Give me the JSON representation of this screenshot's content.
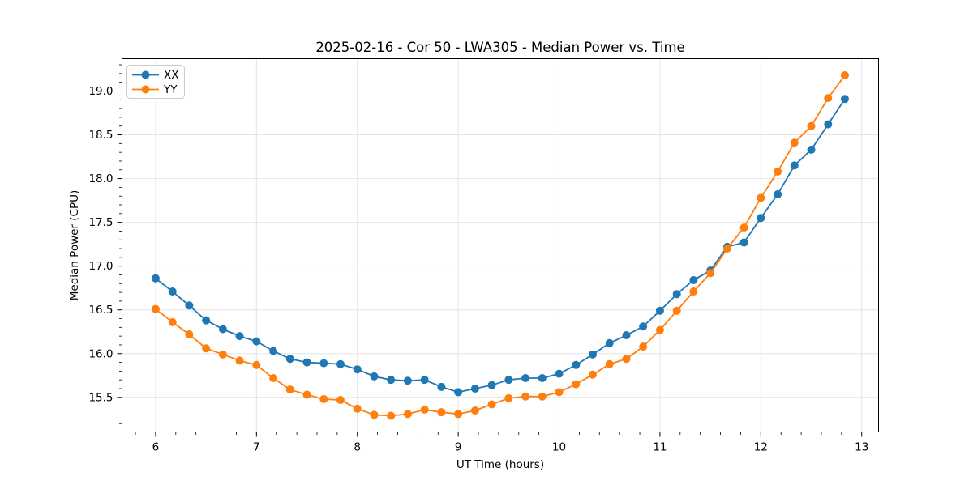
{
  "figure": {
    "background": "#ffffff",
    "plot_background": "#ffffff",
    "spine_color": "#000000",
    "grid_color": "#e4e4e4"
  },
  "chart_data": {
    "type": "line",
    "title": "2025-02-16 - Cor 50 - LWA305 - Median Power vs. Time",
    "xlabel": "UT Time (hours)",
    "ylabel": "Median Power (CPU)",
    "xlim": [
      5.667,
      13.167
    ],
    "ylim": [
      15.105,
      19.37
    ],
    "xticks": [
      6,
      7,
      8,
      9,
      10,
      11,
      12,
      13
    ],
    "yticks": [
      15.5,
      16.0,
      16.5,
      17.0,
      17.5,
      18.0,
      18.5,
      19.0
    ],
    "x_minor_step": 0.2,
    "y_minor_step": 0.1,
    "grid": true,
    "legend": {
      "position": "upper left"
    },
    "x": [
      6.0,
      6.167,
      6.333,
      6.5,
      6.667,
      6.833,
      7.0,
      7.167,
      7.333,
      7.5,
      7.667,
      7.833,
      8.0,
      8.167,
      8.333,
      8.5,
      8.667,
      8.833,
      9.0,
      9.167,
      9.333,
      9.5,
      9.667,
      9.833,
      10.0,
      10.167,
      10.333,
      10.5,
      10.667,
      10.833,
      11.0,
      11.167,
      11.333,
      11.5,
      11.667,
      11.833,
      12.0,
      12.167,
      12.333,
      12.5,
      12.667,
      12.833
    ],
    "series": [
      {
        "name": "XX",
        "color": "#1f77b4",
        "marker": "circle",
        "values": [
          16.86,
          16.71,
          16.55,
          16.38,
          16.28,
          16.2,
          16.14,
          16.03,
          15.94,
          15.9,
          15.89,
          15.88,
          15.82,
          15.74,
          15.7,
          15.69,
          15.7,
          15.62,
          15.56,
          15.6,
          15.64,
          15.7,
          15.72,
          15.72,
          15.77,
          15.87,
          15.99,
          16.12,
          16.21,
          16.31,
          16.49,
          16.68,
          16.84,
          16.95,
          17.22,
          17.27,
          17.55,
          17.82,
          18.15,
          18.33,
          18.62,
          18.91
        ]
      },
      {
        "name": "YY",
        "color": "#ff7f0e",
        "marker": "circle",
        "values": [
          16.51,
          16.36,
          16.22,
          16.06,
          15.99,
          15.92,
          15.87,
          15.72,
          15.59,
          15.53,
          15.48,
          15.47,
          15.37,
          15.3,
          15.29,
          15.31,
          15.36,
          15.33,
          15.31,
          15.35,
          15.42,
          15.49,
          15.51,
          15.51,
          15.56,
          15.65,
          15.76,
          15.88,
          15.94,
          16.08,
          16.27,
          16.49,
          16.71,
          16.92,
          17.2,
          17.44,
          17.78,
          18.08,
          18.41,
          18.6,
          18.92,
          19.18
        ]
      }
    ]
  }
}
